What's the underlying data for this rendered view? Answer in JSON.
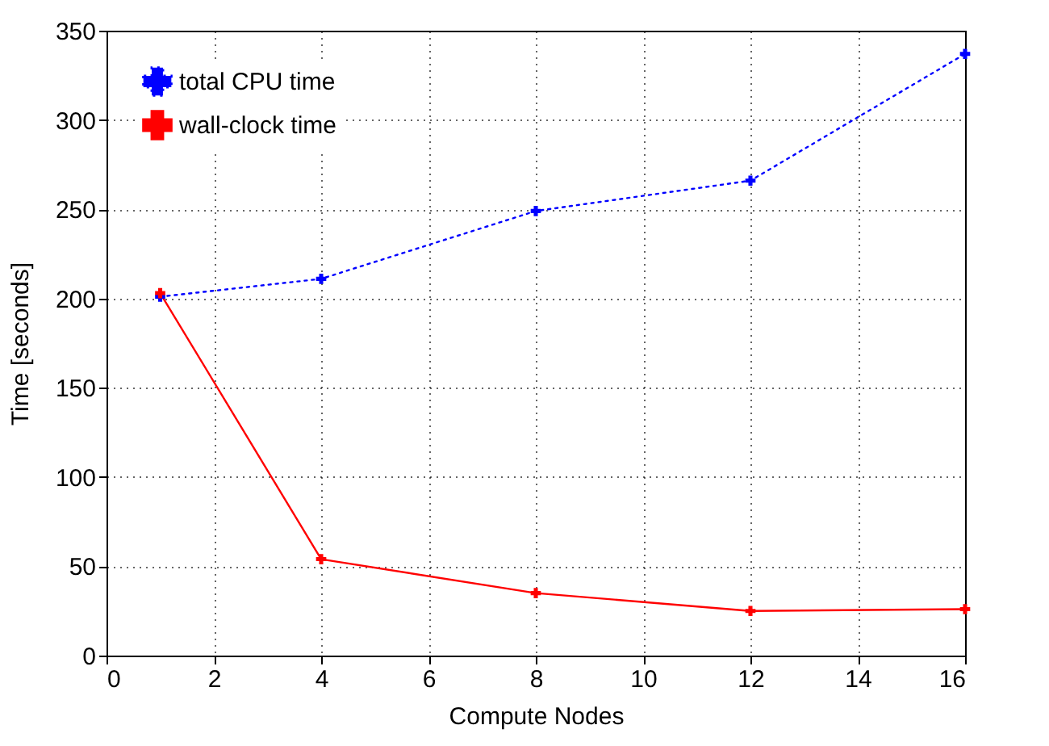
{
  "chart_data": {
    "type": "line",
    "xlabel": "Compute Nodes",
    "ylabel": "Time [seconds]",
    "xlim": [
      0,
      16
    ],
    "xticks": [
      0,
      2,
      4,
      6,
      8,
      10,
      12,
      14,
      16
    ],
    "ylim": [
      0,
      350
    ],
    "yticks": [
      0,
      50,
      100,
      150,
      200,
      250,
      300,
      350
    ],
    "grid": true,
    "legend": "top left",
    "marker": "cross",
    "series": [
      {
        "name": "total CPU time",
        "color": "#0000ff",
        "line_style": "dotted",
        "x": [
          1,
          4,
          8,
          12,
          16
        ],
        "values": [
          201,
          211,
          249,
          266,
          337
        ]
      },
      {
        "name": "wall-clock time",
        "color": "#ff0000",
        "line_style": "solid",
        "x": [
          1,
          4,
          8,
          12,
          16
        ],
        "values": [
          203,
          54,
          35,
          25,
          26
        ]
      }
    ]
  }
}
